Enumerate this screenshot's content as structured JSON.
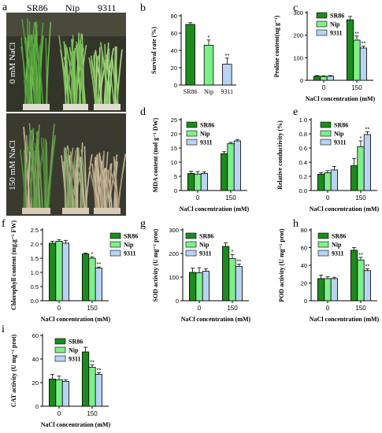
{
  "figure": {
    "panel_a": {
      "letter": "a",
      "varieties": [
        "SR86",
        "Nip",
        "9311"
      ],
      "treatments": [
        "0 mM NaCl",
        "150 mM NaCl"
      ]
    }
  },
  "colors": {
    "SR86": "#1e8a1e",
    "Nip": "#7ef08a",
    "9311": "#b8d4f2"
  },
  "chart_data": [
    {
      "id": "b",
      "letter": "b",
      "type": "bar",
      "ylabel": "Survival rate (%)",
      "xlabel": "",
      "ylim": [
        0,
        80
      ],
      "yticks": [
        0,
        20,
        40,
        60,
        80
      ],
      "categories": [
        "SR86",
        "Nip",
        "9311"
      ],
      "values": [
        70,
        46,
        24
      ],
      "errors": [
        2,
        6,
        7
      ],
      "stars": [
        "",
        "*",
        "**"
      ],
      "legend": false
    },
    {
      "id": "c",
      "letter": "c",
      "type": "bar",
      "ylabel": "Proline content(ug g⁻¹)",
      "xlabel": "NaCl concentration (mM)",
      "ylim": [
        0,
        300
      ],
      "yticks": [
        0,
        100,
        200,
        300
      ],
      "categories": [
        "0",
        "150"
      ],
      "series": [
        {
          "name": "SR86",
          "values": [
            18,
            268
          ],
          "errors": [
            3,
            15
          ],
          "stars": [
            "",
            ""
          ]
        },
        {
          "name": "Nip",
          "values": [
            17,
            178
          ],
          "errors": [
            3,
            18
          ],
          "stars": [
            "",
            "**"
          ]
        },
        {
          "name": "9311",
          "values": [
            18,
            143
          ],
          "errors": [
            3,
            8
          ],
          "stars": [
            "",
            "**"
          ]
        }
      ],
      "legend": true
    },
    {
      "id": "d",
      "letter": "d",
      "type": "bar",
      "ylabel": "MDA content (mol g⁻¹ DW)",
      "xlabel": "NaCl concentration (mM)",
      "ylim": [
        0,
        25
      ],
      "yticks": [
        0,
        5,
        10,
        15,
        20,
        25
      ],
      "categories": [
        "0",
        "150"
      ],
      "series": [
        {
          "name": "SR86",
          "values": [
            6,
            13
          ],
          "errors": [
            0.8,
            0.7
          ],
          "stars": [
            "",
            ""
          ]
        },
        {
          "name": "Nip",
          "values": [
            5.8,
            16.5
          ],
          "errors": [
            0.9,
            0.5
          ],
          "stars": [
            "",
            ""
          ]
        },
        {
          "name": "9311",
          "values": [
            6,
            17.5
          ],
          "errors": [
            0.6,
            0.5
          ],
          "stars": [
            "",
            ""
          ]
        }
      ],
      "legend": true
    },
    {
      "id": "e",
      "letter": "e",
      "type": "bar",
      "ylabel": "Relative conductivity (%)",
      "xlabel": "NaCl concentration (mM)",
      "ylim": [
        0,
        1.0
      ],
      "yticks": [
        0.0,
        0.2,
        0.4,
        0.6,
        0.8,
        1.0
      ],
      "tickDecimals": 1,
      "categories": [
        "0",
        "150"
      ],
      "series": [
        {
          "name": "SR86",
          "values": [
            0.23,
            0.35
          ],
          "errors": [
            0.02,
            0.1
          ],
          "stars": [
            "",
            ""
          ]
        },
        {
          "name": "Nip",
          "values": [
            0.25,
            0.62
          ],
          "errors": [
            0.03,
            0.08
          ],
          "stars": [
            "",
            "*"
          ]
        },
        {
          "name": "9311",
          "values": [
            0.29,
            0.79
          ],
          "errors": [
            0.05,
            0.04
          ],
          "stars": [
            "",
            "**"
          ]
        }
      ],
      "legend": true
    },
    {
      "id": "f",
      "letter": "f",
      "type": "bar",
      "ylabel": "Chlorophyll content (mg.g⁻¹ FW)",
      "xlabel": "NaCl concentration (mM)",
      "ylim": [
        0,
        2.5
      ],
      "yticks": [
        0.0,
        0.5,
        1.0,
        1.5,
        2.0,
        2.5
      ],
      "tickDecimals": 1,
      "categories": [
        "0",
        "150"
      ],
      "series": [
        {
          "name": "SR86",
          "values": [
            2.03,
            1.65
          ],
          "errors": [
            0.07,
            0.03
          ],
          "stars": [
            "",
            ""
          ]
        },
        {
          "name": "Nip",
          "values": [
            2.1,
            1.5
          ],
          "errors": [
            0.05,
            0.05
          ],
          "stars": [
            "",
            "*"
          ]
        },
        {
          "name": "9311",
          "values": [
            2.03,
            1.15
          ],
          "errors": [
            0.1,
            0.04
          ],
          "stars": [
            "",
            "**"
          ]
        }
      ],
      "legend": true
    },
    {
      "id": "g",
      "letter": "g",
      "type": "bar",
      "ylabel": "SOD activity (U mg⁻¹ prot)",
      "xlabel": "NaCl concentration (mM)",
      "ylim": [
        0,
        300
      ],
      "yticks": [
        0,
        100,
        200,
        300
      ],
      "categories": [
        "0",
        "150"
      ],
      "series": [
        {
          "name": "SR86",
          "values": [
            120,
            230
          ],
          "errors": [
            18,
            15
          ],
          "stars": [
            "",
            ""
          ]
        },
        {
          "name": "Nip",
          "values": [
            118,
            178
          ],
          "errors": [
            22,
            18
          ],
          "stars": [
            "",
            "*"
          ]
        },
        {
          "name": "9311",
          "values": [
            125,
            145
          ],
          "errors": [
            10,
            10
          ],
          "stars": [
            "",
            "**"
          ]
        }
      ],
      "legend": true
    },
    {
      "id": "h",
      "letter": "h",
      "type": "bar",
      "ylabel": "POD activity (U mg⁻¹ prot)",
      "xlabel": "NaCl concentration (mM)",
      "ylim": [
        0,
        80
      ],
      "yticks": [
        0,
        20,
        40,
        60,
        80
      ],
      "categories": [
        "0",
        "150"
      ],
      "series": [
        {
          "name": "SR86",
          "values": [
            25,
            57
          ],
          "errors": [
            4,
            3
          ],
          "stars": [
            "",
            ""
          ]
        },
        {
          "name": "Nip",
          "values": [
            25,
            46
          ],
          "errors": [
            2,
            3
          ],
          "stars": [
            "",
            "**"
          ]
        },
        {
          "name": "9311",
          "values": [
            25,
            34
          ],
          "errors": [
            1.5,
            2
          ],
          "stars": [
            "",
            "**"
          ]
        }
      ],
      "legend": true
    },
    {
      "id": "i",
      "letter": "i",
      "type": "bar",
      "ylabel": "CAT activity (U mg⁻¹ prot)",
      "xlabel": "NaCl concentration (mM)",
      "ylim": [
        0,
        60
      ],
      "yticks": [
        0,
        20,
        40,
        60
      ],
      "categories": [
        "0",
        "150"
      ],
      "series": [
        {
          "name": "SR86",
          "values": [
            23,
            46
          ],
          "errors": [
            4,
            4
          ],
          "stars": [
            "",
            ""
          ]
        },
        {
          "name": "Nip",
          "values": [
            22.5,
            33
          ],
          "errors": [
            3,
            2
          ],
          "stars": [
            "",
            "**"
          ]
        },
        {
          "name": "9311",
          "values": [
            21,
            27
          ],
          "errors": [
            1.5,
            1.5
          ],
          "stars": [
            "",
            "**"
          ]
        }
      ],
      "legend": true
    }
  ]
}
